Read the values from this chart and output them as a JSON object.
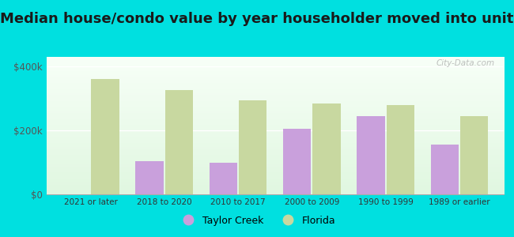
{
  "title": "Median house/condo value by year householder moved into unit",
  "categories": [
    "2021 or later",
    "2018 to 2020",
    "2010 to 2017",
    "2000 to 2009",
    "1990 to 1999",
    "1989 or earlier"
  ],
  "taylor_creek": [
    null,
    105000,
    100000,
    205000,
    245000,
    155000
  ],
  "florida": [
    360000,
    325000,
    295000,
    285000,
    280000,
    245000
  ],
  "taylor_creek_color": "#c9a0dc",
  "florida_color": "#c8d8a0",
  "background_outer": "#00e0e0",
  "background_inner_top": "#f5fff5",
  "background_inner_bottom": "#e8f5e8",
  "yticks": [
    0,
    200000,
    400000
  ],
  "ytick_labels": [
    "$0",
    "$200k",
    "$400k"
  ],
  "ylim": [
    0,
    430000
  ],
  "legend_taylor_creek": "Taylor Creek",
  "legend_florida": "Florida",
  "watermark": "City-Data.com",
  "title_fontsize": 13,
  "bar_width": 0.38,
  "bar_gap": 0.02
}
